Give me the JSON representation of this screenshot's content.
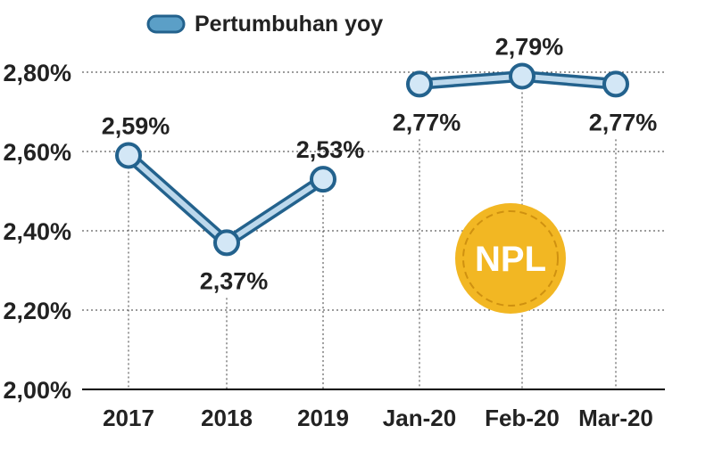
{
  "legend": {
    "label": "Pertumbuhan yoy"
  },
  "badge": {
    "label": "NPL"
  },
  "colors": {
    "line_outer": "#23628d",
    "line_inner": "#bcd8ec",
    "marker_fill": "#d3e7f6",
    "marker_stroke": "#23628d",
    "grid": "#3a3a3a",
    "axis": "#000000",
    "text": "#222222",
    "badge_fill": "#f2b723",
    "badge_ring": "#cf9110",
    "badge_text": "#ffffff"
  },
  "chart_data": {
    "type": "line",
    "title": "",
    "xlabel": "",
    "ylabel": "",
    "ylim": [
      2.0,
      2.9
    ],
    "yticks": [
      2.0,
      2.2,
      2.4,
      2.6,
      2.8
    ],
    "ytick_labels": [
      "2,00%",
      "2,20%",
      "2,40%",
      "2,60%",
      "2,80%"
    ],
    "categories": [
      "2017",
      "2018",
      "2019",
      "Jan-20",
      "Feb-20",
      "Mar-20"
    ],
    "segments": [
      [
        0,
        1,
        2
      ],
      [
        3,
        4,
        5
      ]
    ],
    "grid": "dotted horizontal and vertical",
    "legend_position": "top-left",
    "series": [
      {
        "name": "Pertumbuhan yoy",
        "values": [
          2.59,
          2.37,
          2.53,
          2.77,
          2.79,
          2.77
        ],
        "labels": [
          "2,59%",
          "2,37%",
          "2,53%",
          "2,77%",
          "2,79%",
          "2,77%"
        ],
        "label_position": [
          "above",
          "below",
          "above",
          "below",
          "above",
          "below"
        ]
      }
    ]
  }
}
